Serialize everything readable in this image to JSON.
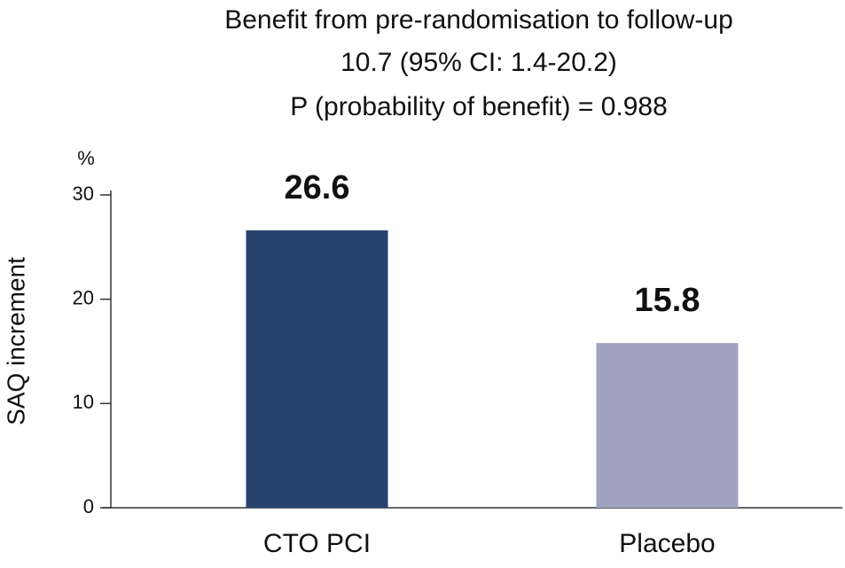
{
  "chart_data": {
    "type": "bar",
    "title": [
      "Benefit from pre-randomisation to follow-up",
      "10.7 (95% CI: 1.4-20.2)",
      "P (probability of benefit) = 0.988"
    ],
    "y_unit": "%",
    "y_label": "SAQ increment",
    "categories": [
      "CTO PCI",
      "Placebo"
    ],
    "values": [
      26.6,
      15.8
    ],
    "colors": [
      "#28426e",
      "#a0a3bf"
    ],
    "ylim": [
      0,
      30
    ],
    "yticks": [
      0,
      10,
      20,
      30
    ],
    "grid": false
  }
}
